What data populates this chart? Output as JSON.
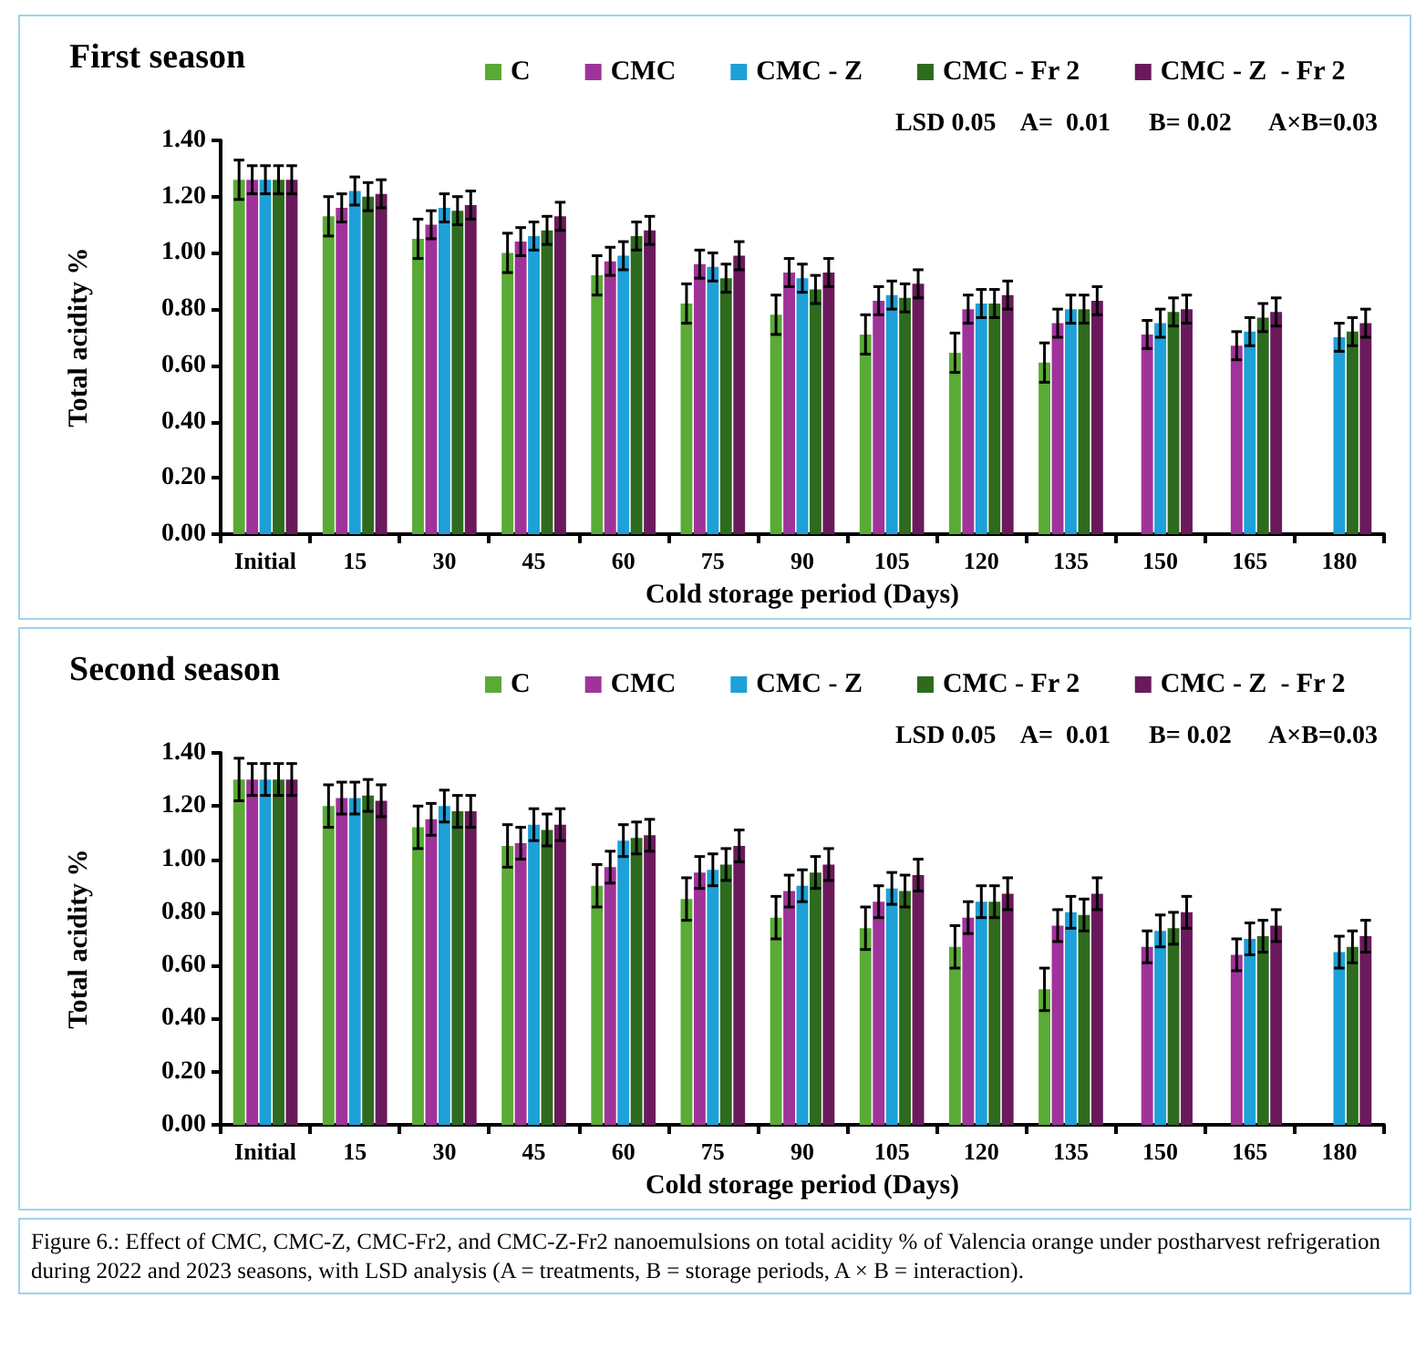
{
  "chart_data": [
    {
      "type": "bar",
      "title": "First season",
      "xlabel": "Cold storage period (Days)",
      "ylabel": "Total acidity %",
      "categories": [
        "Initial",
        "15",
        "30",
        "45",
        "60",
        "75",
        "90",
        "105",
        "120",
        "135",
        "150",
        "165",
        "180"
      ],
      "series": [
        {
          "name": "C",
          "color": "#5aab35",
          "values": [
            1.26,
            1.13,
            1.05,
            1.0,
            0.92,
            0.82,
            0.78,
            0.71,
            0.645,
            0.61,
            null,
            null,
            null
          ],
          "errors": [
            0.07,
            0.07,
            0.07,
            0.07,
            0.07,
            0.07,
            0.07,
            0.07,
            0.07,
            0.07,
            null,
            null,
            null
          ]
        },
        {
          "name": "CMC",
          "color": "#a03399",
          "values": [
            1.26,
            1.16,
            1.1,
            1.04,
            0.97,
            0.96,
            0.93,
            0.83,
            0.8,
            0.75,
            0.71,
            0.67,
            null
          ],
          "errors": [
            0.05,
            0.05,
            0.05,
            0.05,
            0.05,
            0.05,
            0.05,
            0.05,
            0.05,
            0.05,
            0.05,
            0.05,
            null
          ]
        },
        {
          "name": "CMC - Z",
          "color": "#1ea0d8",
          "values": [
            1.26,
            1.22,
            1.16,
            1.06,
            0.99,
            0.95,
            0.91,
            0.85,
            0.82,
            0.8,
            0.75,
            0.72,
            0.7
          ],
          "errors": [
            0.05,
            0.05,
            0.05,
            0.05,
            0.05,
            0.05,
            0.05,
            0.05,
            0.05,
            0.05,
            0.05,
            0.05,
            0.05
          ]
        },
        {
          "name": "CMC - Fr 2",
          "color": "#2e6b1e",
          "values": [
            1.26,
            1.2,
            1.15,
            1.08,
            1.06,
            0.91,
            0.87,
            0.84,
            0.82,
            0.8,
            0.79,
            0.77,
            0.72
          ],
          "errors": [
            0.05,
            0.05,
            0.05,
            0.05,
            0.05,
            0.05,
            0.05,
            0.05,
            0.05,
            0.05,
            0.05,
            0.05,
            0.05
          ]
        },
        {
          "name": "CMC - Z  - Fr 2",
          "color": "#6a1a5c",
          "values": [
            1.26,
            1.21,
            1.17,
            1.13,
            1.08,
            0.99,
            0.93,
            0.89,
            0.85,
            0.83,
            0.8,
            0.79,
            0.75
          ],
          "errors": [
            0.05,
            0.05,
            0.05,
            0.05,
            0.05,
            0.05,
            0.05,
            0.05,
            0.05,
            0.05,
            0.05,
            0.05,
            0.05
          ]
        }
      ],
      "ylim": [
        0,
        1.4
      ],
      "yticks": [
        {
          "value": 0,
          "label": "0.00"
        },
        {
          "value": 0.2,
          "label": "0.20"
        },
        {
          "value": 0.4,
          "label": "0.40"
        },
        {
          "value": 0.6,
          "label": "0.60"
        },
        {
          "value": 0.8,
          "label": "0.80"
        },
        {
          "value": 1,
          "label": "1.00"
        },
        {
          "value": 1.2,
          "label": "1.20"
        },
        {
          "value": 1.4,
          "label": "1.40"
        }
      ],
      "annotations": [
        "LSD 0.05    A=  0.01      B= 0.02      A×B=0.03"
      ],
      "legend": "top",
      "grid": false
    },
    {
      "type": "bar",
      "title": "Second season",
      "xlabel": "Cold storage period (Days)",
      "ylabel": "Total acidity %",
      "categories": [
        "Initial",
        "15",
        "30",
        "45",
        "60",
        "75",
        "90",
        "105",
        "120",
        "135",
        "150",
        "165",
        "180"
      ],
      "series": [
        {
          "name": "C",
          "color": "#5aab35",
          "values": [
            1.3,
            1.2,
            1.12,
            1.05,
            0.9,
            0.85,
            0.78,
            0.74,
            0.67,
            0.51,
            null,
            null,
            null
          ],
          "errors": [
            0.08,
            0.08,
            0.08,
            0.08,
            0.08,
            0.08,
            0.08,
            0.08,
            0.08,
            0.08,
            null,
            null,
            null
          ]
        },
        {
          "name": "CMC",
          "color": "#a03399",
          "values": [
            1.3,
            1.23,
            1.15,
            1.06,
            0.97,
            0.95,
            0.88,
            0.84,
            0.78,
            0.75,
            0.67,
            0.64,
            null
          ],
          "errors": [
            0.06,
            0.06,
            0.06,
            0.06,
            0.06,
            0.06,
            0.06,
            0.06,
            0.06,
            0.06,
            0.06,
            0.06,
            null
          ]
        },
        {
          "name": "CMC - Z",
          "color": "#1ea0d8",
          "values": [
            1.3,
            1.23,
            1.2,
            1.13,
            1.07,
            0.96,
            0.9,
            0.89,
            0.84,
            0.8,
            0.73,
            0.7,
            0.65
          ],
          "errors": [
            0.06,
            0.06,
            0.06,
            0.06,
            0.06,
            0.06,
            0.06,
            0.06,
            0.06,
            0.06,
            0.06,
            0.06,
            0.06
          ]
        },
        {
          "name": "CMC - Fr 2",
          "color": "#2e6b1e",
          "values": [
            1.3,
            1.24,
            1.18,
            1.11,
            1.08,
            0.98,
            0.95,
            0.88,
            0.84,
            0.79,
            0.74,
            0.71,
            0.67
          ],
          "errors": [
            0.06,
            0.06,
            0.06,
            0.06,
            0.06,
            0.06,
            0.06,
            0.06,
            0.06,
            0.06,
            0.06,
            0.06,
            0.06
          ]
        },
        {
          "name": "CMC - Z  - Fr 2",
          "color": "#6a1a5c",
          "values": [
            1.3,
            1.22,
            1.18,
            1.13,
            1.09,
            1.05,
            0.98,
            0.94,
            0.87,
            0.87,
            0.8,
            0.75,
            0.71
          ],
          "errors": [
            0.06,
            0.06,
            0.06,
            0.06,
            0.06,
            0.06,
            0.06,
            0.06,
            0.06,
            0.06,
            0.06,
            0.06,
            0.06
          ]
        }
      ],
      "ylim": [
        0,
        1.4
      ],
      "yticks": [
        {
          "value": 0,
          "label": "0.00"
        },
        {
          "value": 0.2,
          "label": "0.20"
        },
        {
          "value": 0.4,
          "label": "0.40"
        },
        {
          "value": 0.6,
          "label": "0.60"
        },
        {
          "value": 0.8,
          "label": "0.80"
        },
        {
          "value": 1,
          "label": "1.00"
        },
        {
          "value": 1.2,
          "label": "1.20"
        },
        {
          "value": 1.4,
          "label": "1.40"
        }
      ],
      "annotations": [
        "LSD 0.05    A=  0.01      B= 0.02      A×B=0.03",
        "Figure 6.:  Effect of  CMC, CMC-Z, CMC-Fr2, and CMC-Z-Fr2 nanoemulsions on total acidity % of Valencia orange under postharvest refrigeration during 2022 and 2023 seasons, with LSD analysis (A = treatments, B = storage periods, A × B = interaction)."
      ],
      "legend": "top",
      "grid": false
    }
  ]
}
